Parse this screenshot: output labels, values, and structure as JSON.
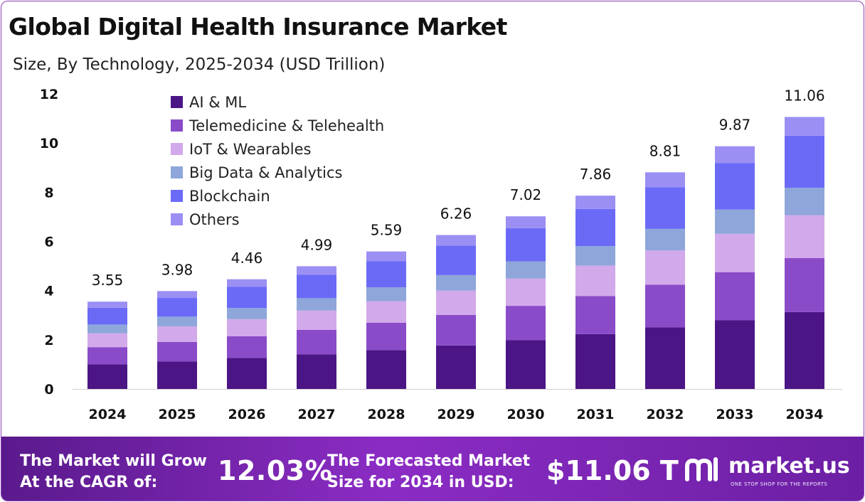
{
  "title": "Global Digital Health Insurance Market",
  "subtitle": "Size, By Technology, 2025-2034 (USD Trillion)",
  "chart_data": {
    "type": "bar",
    "stacked": true,
    "categories": [
      "2024",
      "2025",
      "2026",
      "2027",
      "2028",
      "2029",
      "2030",
      "2031",
      "2032",
      "2033",
      "2034"
    ],
    "totals": [
      3.55,
      3.98,
      4.46,
      4.99,
      5.59,
      6.26,
      7.02,
      7.86,
      8.81,
      9.87,
      11.06
    ],
    "total_labels": [
      "3.55",
      "3.98",
      "4.46",
      "4.99",
      "5.59",
      "6.26",
      "7.02",
      "7.86",
      "8.81",
      "9.87",
      "11.06"
    ],
    "ylim": [
      0,
      12
    ],
    "yticks": [
      0,
      2,
      4,
      6,
      8,
      10,
      12
    ],
    "grid": false,
    "legend_position": "top-left",
    "series": [
      {
        "name": "AI & ML",
        "color": "#4b1585",
        "values": [
          1.0,
          1.12,
          1.26,
          1.41,
          1.58,
          1.77,
          1.99,
          2.23,
          2.5,
          2.8,
          3.13
        ]
      },
      {
        "name": "Telemedicine & Telehealth",
        "color": "#8a4bc9",
        "values": [
          0.7,
          0.79,
          0.88,
          0.99,
          1.11,
          1.24,
          1.39,
          1.55,
          1.74,
          1.95,
          2.19
        ]
      },
      {
        "name": "IoT & Wearables",
        "color": "#d2a9ea",
        "values": [
          0.56,
          0.63,
          0.7,
          0.79,
          0.88,
          0.99,
          1.11,
          1.24,
          1.39,
          1.56,
          1.75
        ]
      },
      {
        "name": "Big Data & Analytics",
        "color": "#8ea6da",
        "values": [
          0.36,
          0.4,
          0.45,
          0.5,
          0.56,
          0.63,
          0.7,
          0.79,
          0.88,
          0.99,
          1.11
        ]
      },
      {
        "name": "Blockchain",
        "color": "#6b6af7",
        "values": [
          0.68,
          0.76,
          0.86,
          0.96,
          1.07,
          1.2,
          1.35,
          1.51,
          1.69,
          1.89,
          2.12
        ]
      },
      {
        "name": "Others",
        "color": "#9b8ff3",
        "values": [
          0.25,
          0.28,
          0.31,
          0.34,
          0.39,
          0.43,
          0.48,
          0.54,
          0.61,
          0.68,
          0.76
        ]
      }
    ]
  },
  "footer": {
    "cagr_label_1": "The Market will Grow",
    "cagr_label_2": "At the CAGR of:",
    "cagr_value": "12.03%",
    "size_label_1": "The Forecasted Market",
    "size_label_2": "Size for 2034 in USD:",
    "size_value": "$11.06 T"
  },
  "brand": {
    "name": "market.us",
    "tagline": "ONE STOP SHOP FOR THE REPORTS"
  }
}
